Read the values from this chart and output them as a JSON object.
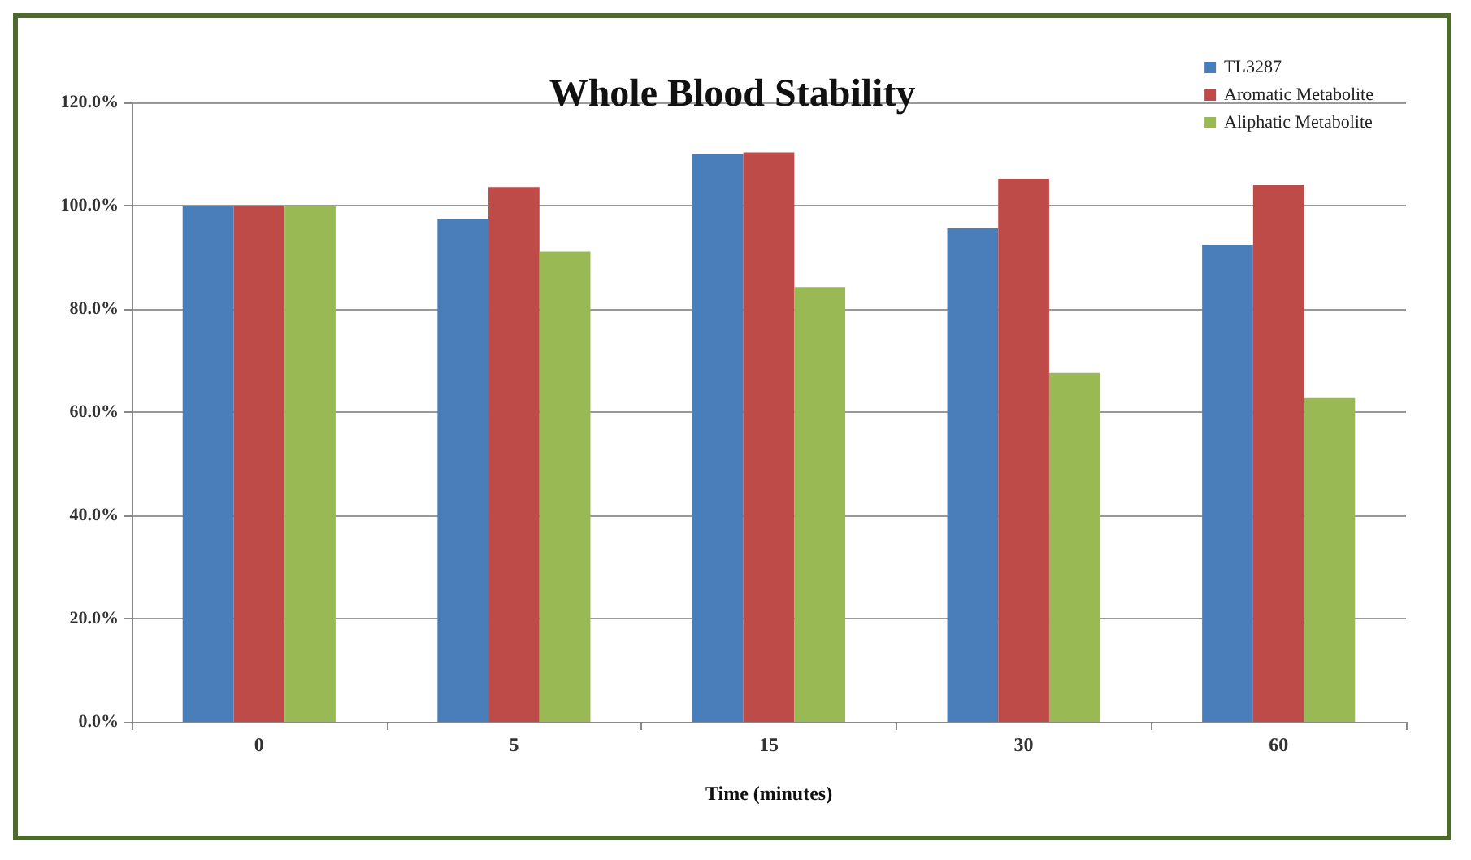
{
  "chart_data": {
    "type": "bar",
    "title": "Whole Blood Stability",
    "xlabel": "Time (minutes)",
    "categories": [
      "0",
      "5",
      "15",
      "30",
      "60"
    ],
    "series": [
      {
        "name": "TL3287",
        "color": "#4a7ebb",
        "values": [
          100,
          97.4,
          110.0,
          95.6,
          92.4
        ]
      },
      {
        "name": "Aromatic Metabolite",
        "color": "#be4b48",
        "values": [
          100,
          103.6,
          110.3,
          105.2,
          104.1
        ]
      },
      {
        "name": "Aliphatic Metabolite",
        "color": "#98b954",
        "values": [
          100,
          91.1,
          84.2,
          67.6,
          62.7
        ]
      }
    ],
    "ylim": [
      0,
      120
    ],
    "yticks": [
      {
        "value": 0,
        "label": "0.0%"
      },
      {
        "value": 20,
        "label": "20.0%"
      },
      {
        "value": 40,
        "label": "40.0%"
      },
      {
        "value": 60,
        "label": "60.0%"
      },
      {
        "value": 80,
        "label": "80.0%"
      },
      {
        "value": 100,
        "label": "100.0%"
      },
      {
        "value": 120,
        "label": "120.0%"
      }
    ],
    "grid": "y",
    "legend": "top right"
  }
}
